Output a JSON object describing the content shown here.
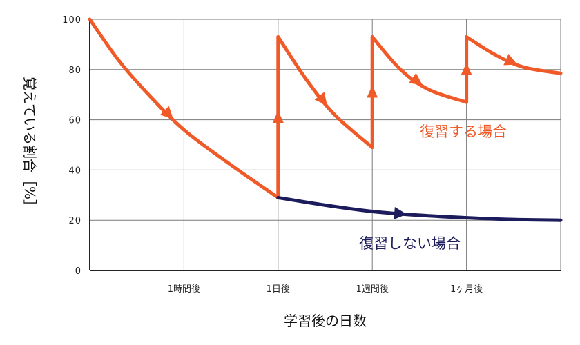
{
  "chart_data": {
    "type": "line",
    "title": "",
    "xlabel": "学習後の日数",
    "ylabel": "覚えている割合［%］",
    "ylim": [
      0,
      100
    ],
    "yticks": [
      0,
      20,
      40,
      60,
      80,
      100
    ],
    "xlim": [
      0,
      5
    ],
    "xticks": [
      {
        "x": 1,
        "label": "1時間後"
      },
      {
        "x": 2,
        "label": "1日後"
      },
      {
        "x": 3,
        "label": "1週間後"
      },
      {
        "x": 4,
        "label": "1ヶ月後"
      }
    ],
    "grid": true,
    "series": [
      {
        "name": "復習する場合",
        "color": "#F05A28",
        "points": [
          [
            0,
            100
          ],
          [
            0.3,
            84
          ],
          [
            0.6,
            71
          ],
          [
            1,
            56
          ],
          [
            1.5,
            42
          ],
          [
            2,
            29
          ],
          [
            2,
            93
          ],
          [
            2.3,
            76
          ],
          [
            2.6,
            62
          ],
          [
            3,
            49
          ],
          [
            3,
            93
          ],
          [
            3.3,
            80
          ],
          [
            3.6,
            72
          ],
          [
            4,
            67
          ],
          [
            4,
            93
          ],
          [
            4.3,
            86
          ],
          [
            4.6,
            81
          ],
          [
            5,
            78.5
          ]
        ]
      },
      {
        "name": "復習しない場合",
        "color": "#1C1C5C",
        "points": [
          [
            2,
            29
          ],
          [
            2.5,
            26
          ],
          [
            3,
            23.5
          ],
          [
            3.5,
            22
          ],
          [
            4,
            21
          ],
          [
            4.5,
            20.3
          ],
          [
            5,
            20
          ]
        ]
      }
    ],
    "annotations": [
      {
        "text": "復習する場合",
        "series": 0
      },
      {
        "text": "復習しない場合",
        "series": 1
      }
    ]
  }
}
